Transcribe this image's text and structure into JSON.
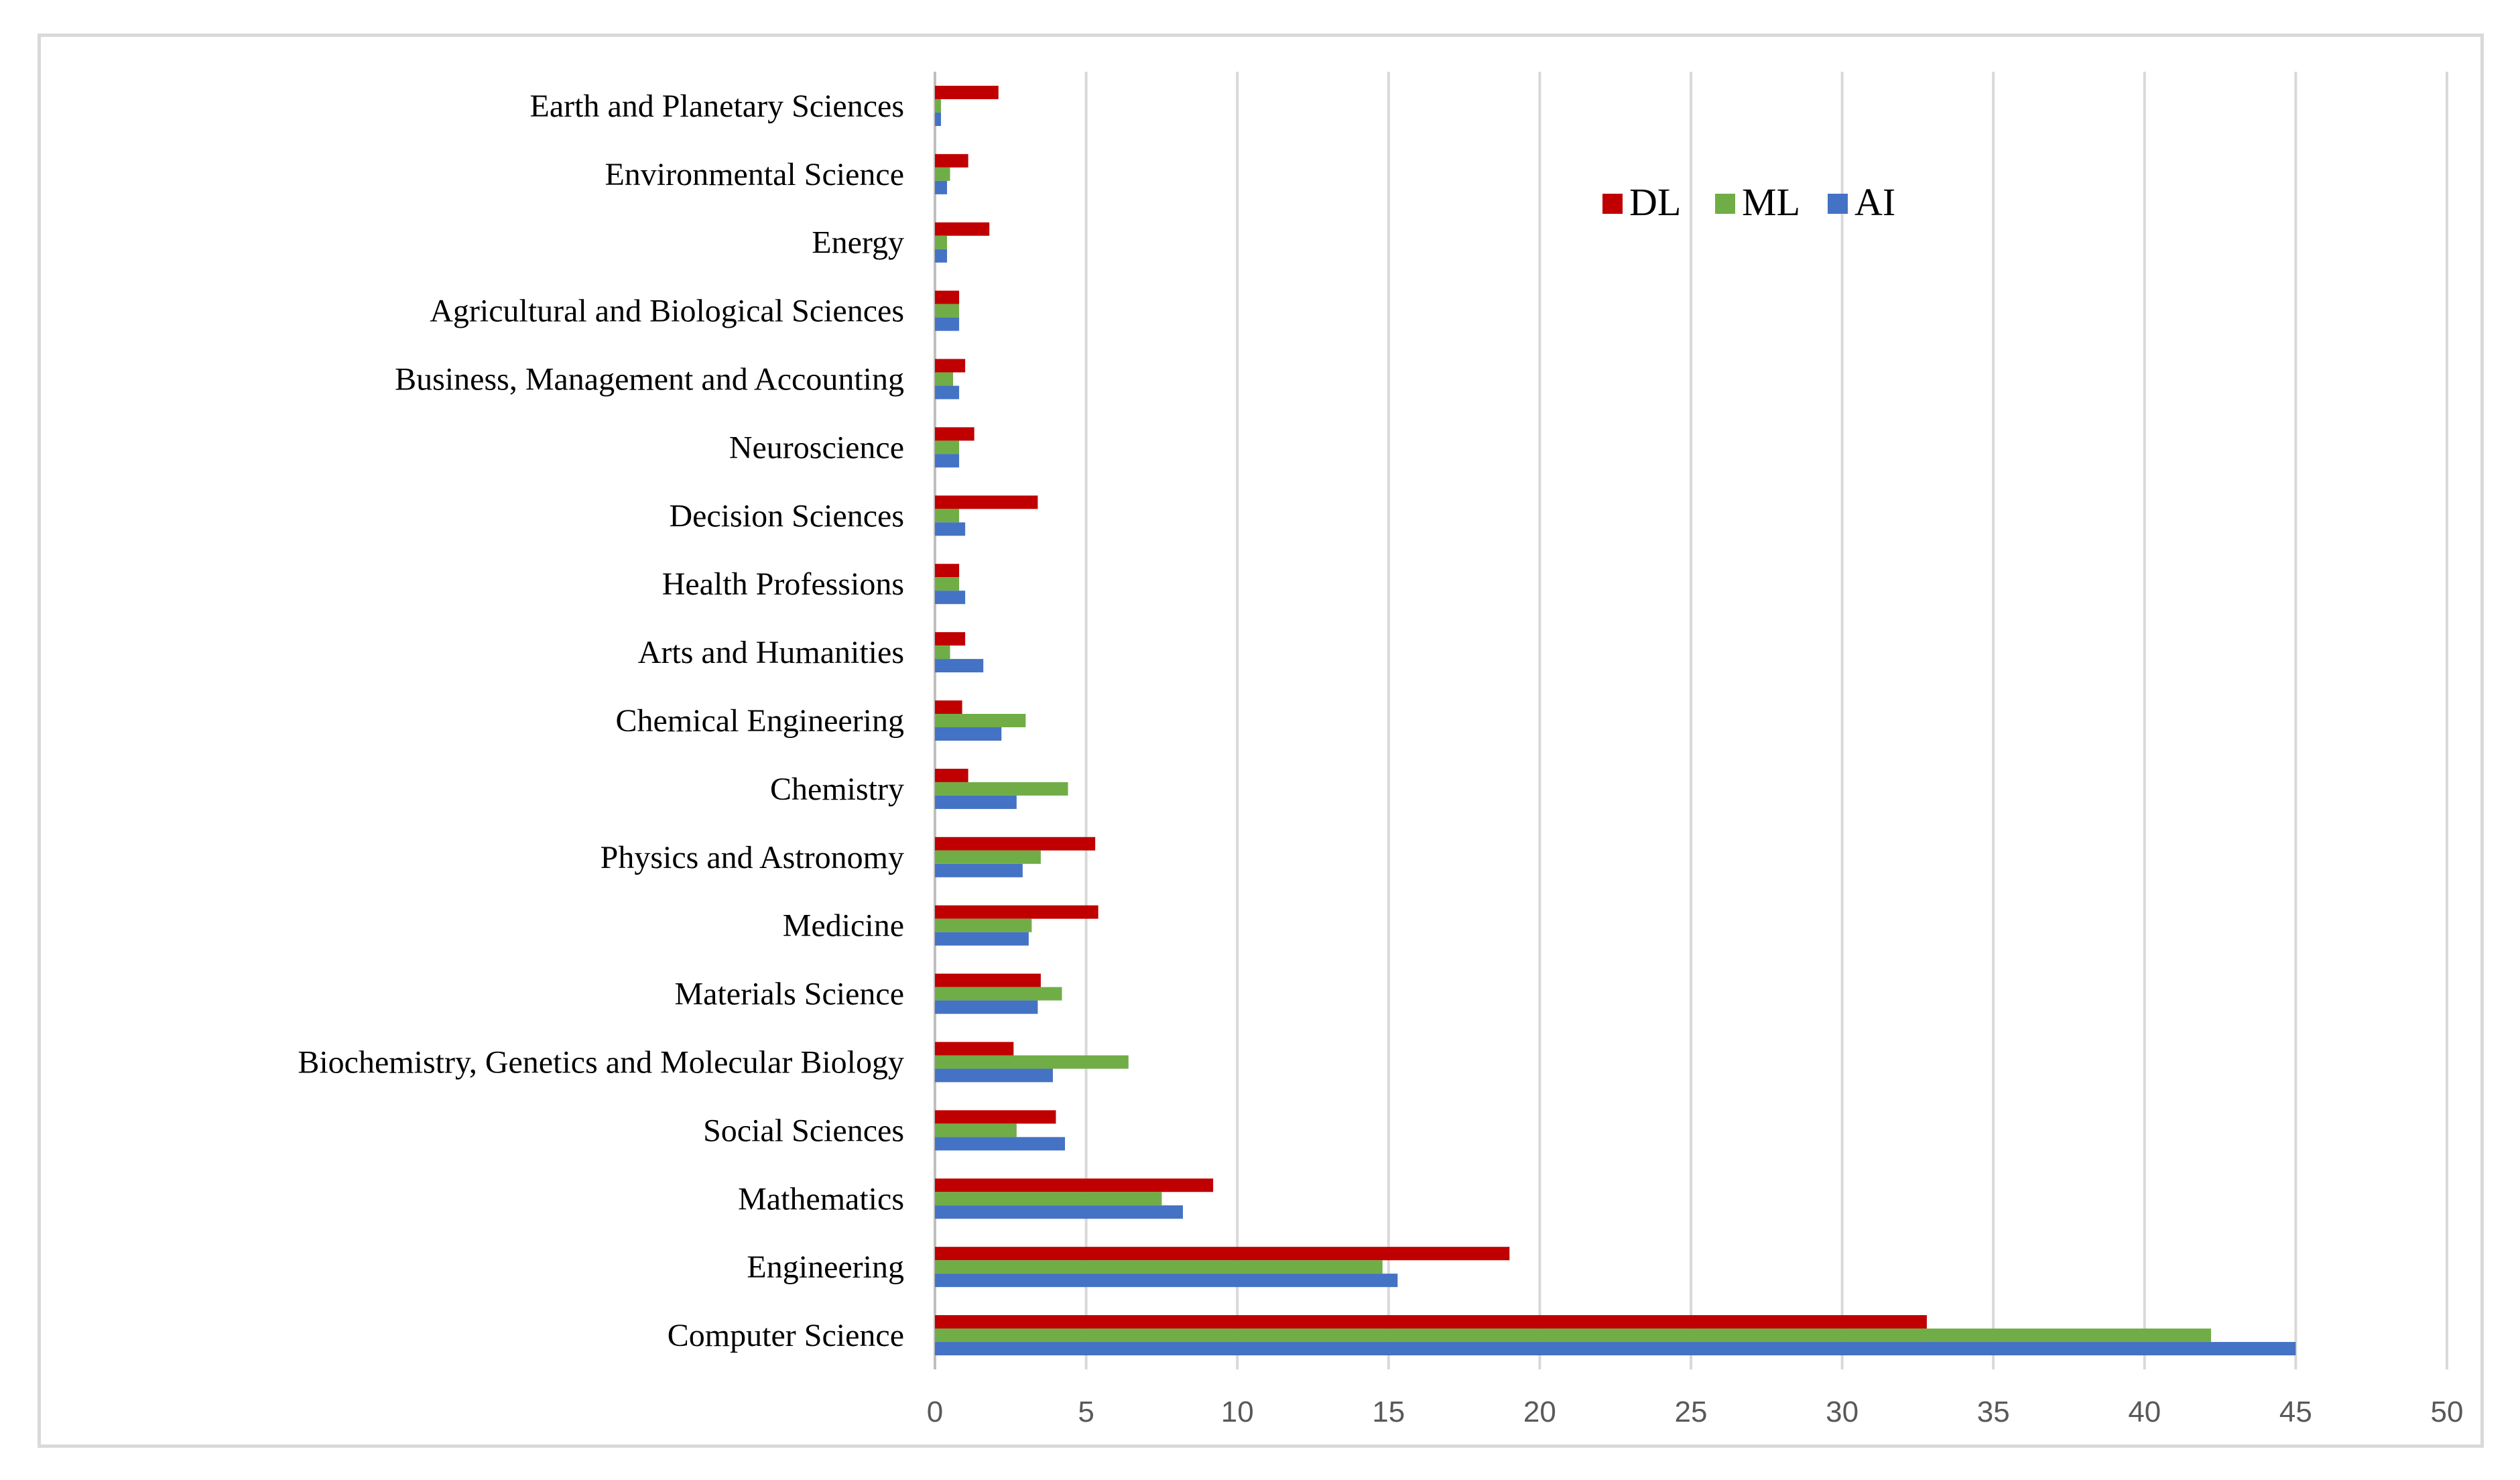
{
  "chart_data": {
    "type": "bar",
    "orientation": "horizontal",
    "categories": [
      "Computer Science",
      "Engineering",
      "Mathematics",
      "Social Sciences",
      "Biochemistry, Genetics and Molecular Biology",
      "Materials Science",
      "Medicine",
      "Physics and Astronomy",
      "Chemistry",
      "Chemical Engineering",
      "Arts and Humanities",
      "Health Professions",
      "Decision Sciences",
      "Neuroscience",
      "Business, Management and Accounting",
      "Agricultural and Biological Sciences",
      "Energy",
      "Environmental Science",
      "Earth and Planetary Sciences"
    ],
    "series": [
      {
        "name": "DL",
        "color": "#c00000",
        "values": [
          32.8,
          19.0,
          9.2,
          4.0,
          2.6,
          3.5,
          5.4,
          5.3,
          1.1,
          0.9,
          1.0,
          0.8,
          3.4,
          1.3,
          1.0,
          0.8,
          1.8,
          1.1,
          2.1
        ]
      },
      {
        "name": "ML",
        "color": "#70ad47",
        "values": [
          42.2,
          14.8,
          7.5,
          2.7,
          6.4,
          4.2,
          3.2,
          3.5,
          4.4,
          3.0,
          0.5,
          0.8,
          0.8,
          0.8,
          0.6,
          0.8,
          0.4,
          0.5,
          0.2
        ]
      },
      {
        "name": "AI",
        "color": "#4472c4",
        "values": [
          45.0,
          15.3,
          8.2,
          4.3,
          3.9,
          3.4,
          3.1,
          2.9,
          2.7,
          2.2,
          1.6,
          1.0,
          1.0,
          0.8,
          0.8,
          0.8,
          0.4,
          0.4,
          0.2
        ]
      }
    ],
    "xlim": [
      0,
      50
    ],
    "xticks": [
      0,
      5,
      10,
      15,
      20,
      25,
      30,
      35,
      40,
      45,
      50
    ],
    "grid": true,
    "legend": "top-center",
    "title": "",
    "xlabel": "",
    "ylabel": ""
  }
}
